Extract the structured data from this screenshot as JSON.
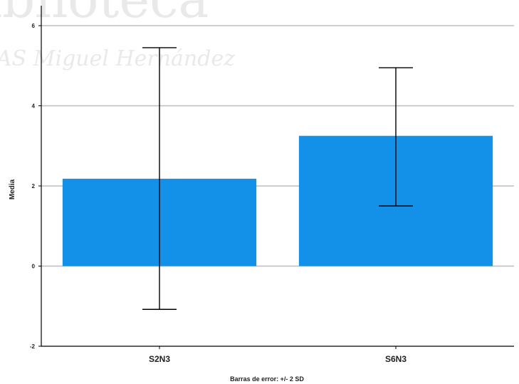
{
  "watermark": {
    "line1": "iblioteca",
    "line2": "AS Miguel Hernández"
  },
  "colors": {
    "bar": "#1390e8",
    "error_bar": "#000000",
    "grid": "#bdbdbd",
    "axis": "#000000"
  },
  "chart_data": {
    "type": "bar",
    "categories": [
      "S2N3",
      "S6N3"
    ],
    "values": [
      2.18,
      3.25
    ],
    "error_bars": {
      "lower": [
        -1.08,
        1.5
      ],
      "upper": [
        5.45,
        4.95
      ]
    },
    "xlabel": "",
    "ylabel": "Media",
    "ylim": [
      -2,
      6
    ],
    "yticks": [
      -2,
      0,
      2,
      4,
      6
    ],
    "grid": true,
    "footnote": "Barras de error: +/- 2 SD"
  }
}
